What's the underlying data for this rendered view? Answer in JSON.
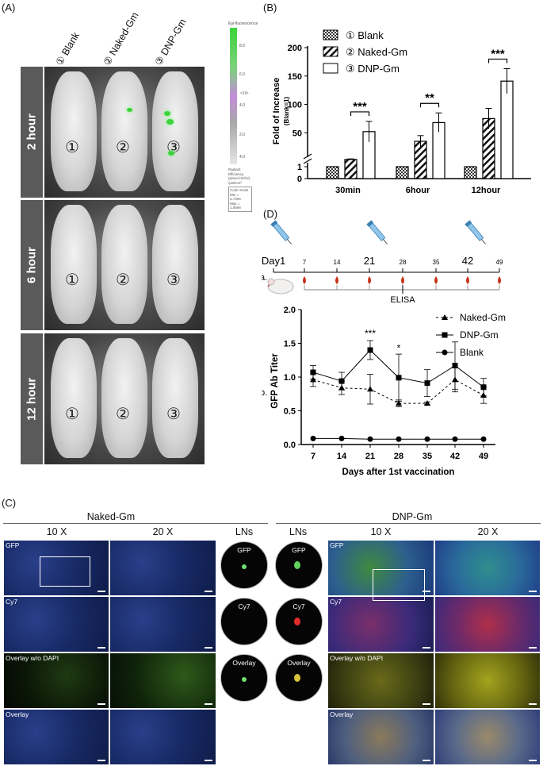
{
  "panel_a": {
    "label": "(A)",
    "columns": [
      "① Blank",
      "② Naked-Gm",
      "③ DNP-Gm"
    ],
    "rows": [
      {
        "time": "2 hour",
        "markers": [
          "①",
          "②",
          "③"
        ]
      },
      {
        "time": "6 hour",
        "markers": [
          "①",
          "②",
          "③"
        ]
      },
      {
        "time": "12 hour",
        "markers": [
          "①",
          "②",
          "③"
        ]
      }
    ],
    "scale_title": "Epi-fluorescence",
    "scale_ticks": [
      "8.0",
      "6.0",
      "×10⁶",
      "4.0",
      "2.0",
      "4.0"
    ],
    "scale_caption": [
      "Radiant Efficiency",
      "(p/sec/cm²/sr)",
      "/μW/cm²",
      "Color Scale",
      "Min = 2.73e6",
      "Max = 1.05e8"
    ]
  },
  "panel_b": {
    "label": "(B)",
    "chart_data": {
      "type": "bar",
      "categories": [
        "30min",
        "6hour",
        "12hour"
      ],
      "series": [
        {
          "name": "① Blank",
          "values": [
            1,
            1,
            1
          ],
          "err": [
            0,
            0,
            0
          ]
        },
        {
          "name": "② Naked-Gm",
          "values": [
            3,
            35,
            75
          ],
          "err": [
            1,
            10,
            18
          ]
        },
        {
          "name": "③ DNP-Gm",
          "values": [
            52,
            68,
            141
          ],
          "err": [
            18,
            17,
            22
          ]
        }
      ],
      "ylabel": "Fold of Increase",
      "ylabel_sub": "(Blank=1)",
      "yticks": [
        "0",
        "1",
        "50",
        "100",
        "150",
        "200"
      ],
      "significance": [
        "***",
        "**",
        "***"
      ],
      "legend_position": "top-left"
    }
  },
  "panel_d": {
    "label": "(D)",
    "schedule": {
      "row_label": "a.",
      "day_labels": [
        "Day1",
        "7",
        "14",
        "21",
        "28",
        "35",
        "42",
        "49"
      ],
      "elisa": "ELISA"
    },
    "chart_data": {
      "type": "line",
      "row_label": "b.",
      "x": [
        7,
        14,
        21,
        28,
        35,
        42,
        49
      ],
      "series": [
        {
          "name": "Naked-Gm",
          "values": [
            0.96,
            0.84,
            0.82,
            0.61,
            0.61,
            0.96,
            0.73
          ],
          "err": [
            0.1,
            0.1,
            0.22,
            0.05,
            0.02,
            0.18,
            0.12
          ]
        },
        {
          "name": "DNP-Gm",
          "values": [
            1.07,
            0.94,
            1.4,
            0.99,
            0.91,
            1.17,
            0.85
          ],
          "err": [
            0.1,
            0.13,
            0.14,
            0.35,
            0.2,
            0.35,
            0.13
          ]
        },
        {
          "name": "Blank",
          "values": [
            0.09,
            0.09,
            0.08,
            0.08,
            0.08,
            0.08,
            0.08
          ],
          "err": [
            0,
            0,
            0,
            0,
            0,
            0,
            0
          ]
        }
      ],
      "xlabel": "Days after 1st vaccination",
      "ylabel": "GFP Ab Titer",
      "ylim": [
        0,
        2.0
      ],
      "yticks": [
        "0.0",
        "0.5",
        "1.0",
        "1.5",
        "2.0"
      ],
      "xticks": [
        "7",
        "14",
        "21",
        "28",
        "35",
        "42",
        "49"
      ],
      "significance": [
        {
          "x": 21,
          "text": "***"
        },
        {
          "x": 28,
          "text": "*"
        }
      ],
      "legend_position": "top-right"
    }
  },
  "panel_c": {
    "label": "(C)",
    "naked_title": "Naked-Gm",
    "dnp_title": "DNP-Gm",
    "col_10x": "10 X",
    "col_20x": "20 X",
    "col_lns": "LNs",
    "row_labels": [
      "GFP",
      "Cy7",
      "Overlay w/o DAPI",
      "Overlay"
    ],
    "ln_labels": [
      "GFP",
      "Cy7",
      "Overlay"
    ]
  }
}
